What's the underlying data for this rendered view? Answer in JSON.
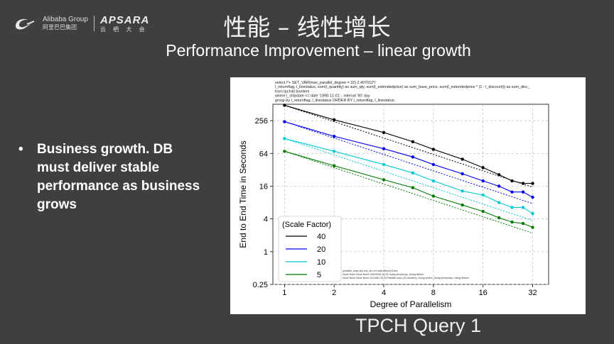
{
  "header": {
    "logo_company": "Alibaba Group",
    "logo_company_cn": "阿里巴巴集团",
    "logo_event": "APSARA",
    "logo_event_cn": "云 栖 大 会",
    "title_cn": "性能 – 线性增长",
    "title_en": "Performance Improvement – linear growth"
  },
  "bullet": {
    "symbol": "•",
    "text": "Business growth.  DB must deliver stable performance as business grows"
  },
  "caption": "TPCH Query 1",
  "chart_data": {
    "type": "line",
    "sql": [
      "select  /*+ SET_VAR(max_parallel_degree = 32)   2.407012*/",
      "  l_returnflag, l_linestatus, sum(l_quantity) as sum_qty, sum(l_extendedprice) as sum_base_price,  sum(l_extendedprice * (1 - l_discount)) as sum_disc_",
      "from tpch40.lineitem",
      "where l_shipdate <= date '1998-12-01' - interval '90' day",
      "group by l_returnflag, l_linestatus ORDER BY l_returnflag, l_linestatus;"
    ],
    "xlabel": "Degree of Parallelism",
    "ylabel": "End to End Time in Seconds",
    "x_scale": "log2",
    "y_scale": "log2",
    "xlim": [
      1,
      32
    ],
    "ylim": [
      0.25,
      512
    ],
    "x_ticks": [
      1,
      2,
      4,
      8,
      16,
      32
    ],
    "x_tick_labels": [
      "1",
      "2",
      "4",
      "8",
      "16",
      "32"
    ],
    "y_ticks": [
      0.25,
      1,
      4,
      16,
      64,
      256
    ],
    "y_tick_labels": [
      "0.25",
      "1",
      "4",
      "16",
      "64",
      "256"
    ],
    "grid": true,
    "legend_title": "(Scale Factor)",
    "legend_position": "lower-left",
    "x": [
      1,
      2,
      4,
      6,
      8,
      12,
      16,
      20,
      24,
      28,
      32
    ],
    "series": [
      {
        "name": "40",
        "color": "#000000",
        "values": [
          490,
          265,
          155,
          105,
          76,
          50,
          35,
          26,
          20,
          18,
          18
        ],
        "ideal": [
          490,
          245,
          122.5,
          81.7,
          61.3,
          40.8,
          30.6,
          24.5,
          20.4,
          17.5,
          15.3
        ]
      },
      {
        "name": "20",
        "color": "#0000ee",
        "values": [
          245,
          132,
          78,
          55,
          40,
          27,
          20,
          16,
          12.5,
          12.5,
          10
        ],
        "ideal": [
          245,
          122.5,
          61.3,
          40.8,
          30.6,
          20.4,
          15.3,
          12.3,
          10.2,
          8.75,
          7.66
        ]
      },
      {
        "name": "10",
        "color": "#00c8d2",
        "values": [
          120,
          70,
          40,
          28,
          20,
          13,
          11,
          8,
          6.5,
          6.5,
          5
        ],
        "ideal": [
          120,
          60,
          30,
          20,
          15,
          10,
          7.5,
          6,
          5,
          4.3,
          3.75
        ]
      },
      {
        "name": "5",
        "color": "#007a00",
        "values": [
          70,
          38,
          21,
          15,
          10.5,
          7.2,
          5.5,
          4.2,
          3.5,
          3.3,
          2.8
        ],
        "ideal": [
          70,
          35,
          17.5,
          11.7,
          8.75,
          5.83,
          4.38,
          3.5,
          2.92,
          2.5,
          2.19
        ]
      }
    ],
    "explain_text": [
      "possible_keys  key  key_len  ref    rows   filtered                                   Extra",
      "None   None   None   None  23519034   33.33                              Using temporary; Using filesort",
      "None   None   None   None   1411981   33.33  Parallel scan (32 workers); Using where; Using temporary; Using filesort"
    ]
  }
}
